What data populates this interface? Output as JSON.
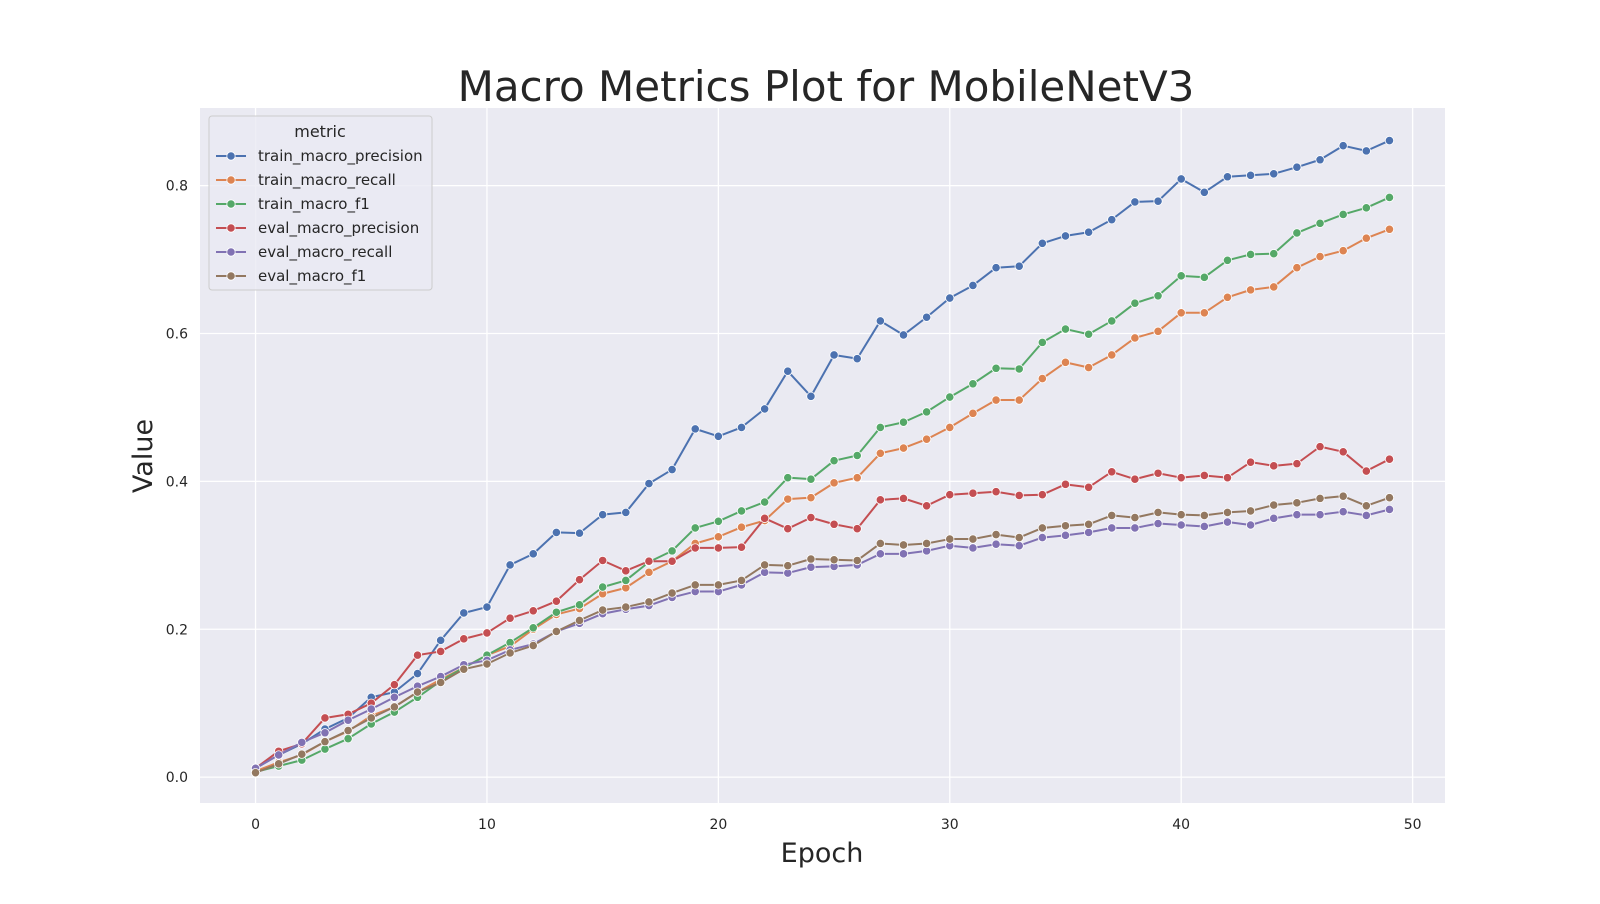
{
  "chart_data": {
    "type": "line",
    "title": "Macro Metrics Plot for MobileNetV3",
    "xlabel": "Epoch",
    "ylabel": "Value",
    "xlim": [
      -2.4,
      51.4
    ],
    "ylim": [
      -0.035,
      0.905
    ],
    "xticks": [
      0,
      10,
      20,
      30,
      40,
      50
    ],
    "yticks": [
      0.0,
      0.2,
      0.4,
      0.6,
      0.8
    ],
    "xtick_labels": [
      "0",
      "10",
      "20",
      "30",
      "40",
      "50"
    ],
    "ytick_labels": [
      "0.0",
      "0.2",
      "0.4",
      "0.6",
      "0.8"
    ],
    "grid": true,
    "background_color": "#eaeaf2",
    "grid_color": "#ffffff",
    "legend": {
      "title": "metric",
      "placement": "top-left"
    },
    "x": [
      0,
      1,
      2,
      3,
      4,
      5,
      6,
      7,
      8,
      9,
      10,
      11,
      12,
      13,
      14,
      15,
      16,
      17,
      18,
      19,
      20,
      21,
      22,
      23,
      24,
      25,
      26,
      27,
      28,
      29,
      30,
      31,
      32,
      33,
      34,
      35,
      36,
      37,
      38,
      39,
      40,
      41,
      42,
      43,
      44,
      45,
      46,
      47,
      48,
      49
    ],
    "series": [
      {
        "name": "train_macro_precision",
        "color": "#4c72b0",
        "values": [
          0.012,
          0.03,
          0.045,
          0.065,
          0.08,
          0.108,
          0.115,
          0.14,
          0.185,
          0.222,
          0.23,
          0.287,
          0.302,
          0.331,
          0.33,
          0.355,
          0.358,
          0.397,
          0.416,
          0.471,
          0.461,
          0.473,
          0.498,
          0.549,
          0.515,
          0.571,
          0.566,
          0.617,
          0.598,
          0.622,
          0.648,
          0.665,
          0.689,
          0.691,
          0.722,
          0.732,
          0.737,
          0.754,
          0.778,
          0.779,
          0.809,
          0.791,
          0.812,
          0.814,
          0.816,
          0.825,
          0.835,
          0.854,
          0.847,
          0.861
        ]
      },
      {
        "name": "train_macro_recall",
        "color": "#dd8452",
        "values": [
          0.008,
          0.02,
          0.03,
          0.048,
          0.062,
          0.083,
          0.095,
          0.115,
          0.132,
          0.148,
          0.165,
          0.177,
          0.2,
          0.22,
          0.228,
          0.248,
          0.256,
          0.277,
          0.292,
          0.316,
          0.325,
          0.338,
          0.347,
          0.376,
          0.378,
          0.398,
          0.405,
          0.438,
          0.445,
          0.457,
          0.473,
          0.492,
          0.51,
          0.51,
          0.539,
          0.561,
          0.554,
          0.571,
          0.594,
          0.603,
          0.628,
          0.628,
          0.649,
          0.659,
          0.663,
          0.689,
          0.704,
          0.712,
          0.729,
          0.741
        ]
      },
      {
        "name": "train_macro_f1",
        "color": "#55a868",
        "values": [
          0.007,
          0.015,
          0.023,
          0.038,
          0.052,
          0.072,
          0.088,
          0.108,
          0.13,
          0.148,
          0.165,
          0.182,
          0.202,
          0.223,
          0.233,
          0.257,
          0.266,
          0.291,
          0.306,
          0.337,
          0.346,
          0.36,
          0.372,
          0.405,
          0.403,
          0.428,
          0.435,
          0.473,
          0.48,
          0.494,
          0.514,
          0.532,
          0.553,
          0.552,
          0.588,
          0.606,
          0.599,
          0.617,
          0.641,
          0.651,
          0.678,
          0.676,
          0.699,
          0.707,
          0.708,
          0.736,
          0.749,
          0.761,
          0.77,
          0.784
        ]
      },
      {
        "name": "eval_macro_precision",
        "color": "#c44e52",
        "values": [
          0.012,
          0.035,
          0.045,
          0.08,
          0.085,
          0.1,
          0.125,
          0.165,
          0.17,
          0.187,
          0.195,
          0.215,
          0.225,
          0.238,
          0.267,
          0.293,
          0.279,
          0.292,
          0.292,
          0.31,
          0.31,
          0.311,
          0.35,
          0.336,
          0.351,
          0.342,
          0.336,
          0.375,
          0.377,
          0.367,
          0.382,
          0.384,
          0.386,
          0.381,
          0.382,
          0.396,
          0.392,
          0.413,
          0.403,
          0.411,
          0.405,
          0.408,
          0.405,
          0.426,
          0.421,
          0.424,
          0.447,
          0.44,
          0.414,
          0.43
        ]
      },
      {
        "name": "eval_macro_recall",
        "color": "#8172b3",
        "values": [
          0.012,
          0.03,
          0.047,
          0.06,
          0.077,
          0.092,
          0.108,
          0.123,
          0.136,
          0.152,
          0.158,
          0.172,
          0.18,
          0.197,
          0.208,
          0.221,
          0.227,
          0.232,
          0.243,
          0.251,
          0.251,
          0.26,
          0.277,
          0.276,
          0.284,
          0.285,
          0.287,
          0.302,
          0.302,
          0.306,
          0.313,
          0.31,
          0.315,
          0.313,
          0.324,
          0.327,
          0.331,
          0.337,
          0.337,
          0.343,
          0.341,
          0.339,
          0.345,
          0.341,
          0.35,
          0.355,
          0.355,
          0.359,
          0.354,
          0.362
        ]
      },
      {
        "name": "eval_macro_f1",
        "color": "#937860",
        "values": [
          0.006,
          0.018,
          0.031,
          0.048,
          0.063,
          0.08,
          0.095,
          0.115,
          0.128,
          0.146,
          0.153,
          0.168,
          0.178,
          0.197,
          0.212,
          0.226,
          0.23,
          0.237,
          0.249,
          0.26,
          0.26,
          0.266,
          0.287,
          0.286,
          0.295,
          0.294,
          0.293,
          0.316,
          0.314,
          0.316,
          0.322,
          0.322,
          0.328,
          0.324,
          0.337,
          0.34,
          0.342,
          0.354,
          0.351,
          0.358,
          0.355,
          0.354,
          0.358,
          0.36,
          0.368,
          0.371,
          0.377,
          0.38,
          0.367,
          0.378
        ]
      }
    ]
  }
}
